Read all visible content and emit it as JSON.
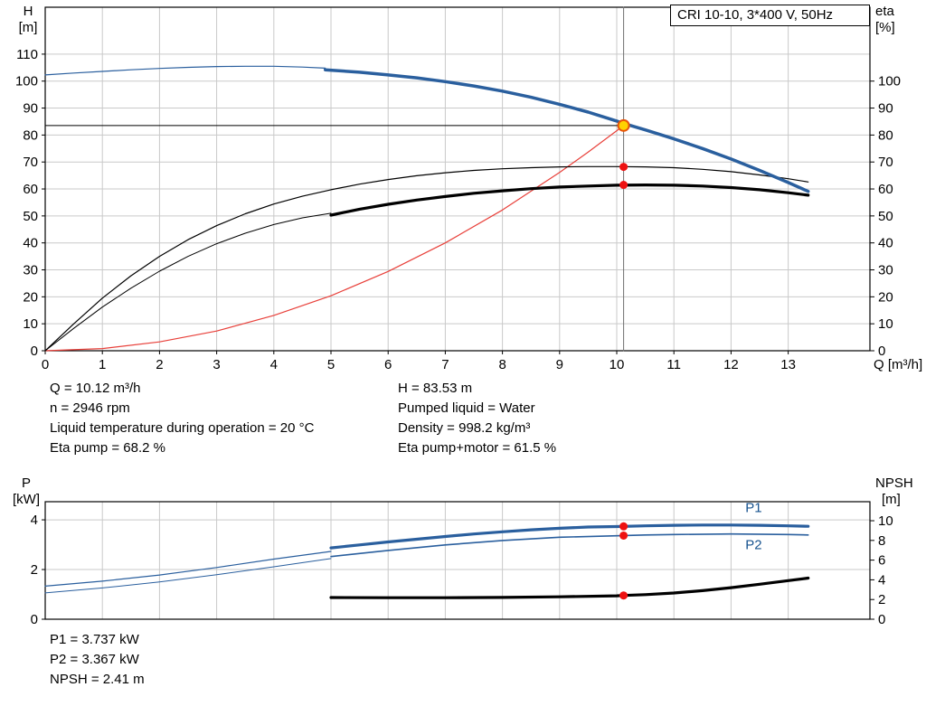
{
  "colors": {
    "axis": "#000000",
    "grid": "#c9c9c9",
    "curve_blue": "#2a5f9e",
    "curve_black": "#000000",
    "system_red": "#e8403a",
    "marker_red": "#ee1111",
    "duty_fill": "#ffd200",
    "duty_stroke": "#e8540a",
    "duty_line_gray": "#707070",
    "label_blue": "#17538f"
  },
  "operating_point_info": {
    "left": [
      "Q = 10.12 m³/h",
      "n = 2946 rpm",
      "Liquid temperature during operation = 20 °C",
      "Eta pump = 68.2 %"
    ],
    "right": [
      "H = 83.53 m",
      "Pumped liquid = Water",
      "Density = 998.2 kg/m³",
      "Eta pump+motor = 61.5 %"
    ]
  },
  "power_info": [
    "P1 = 3.737 kW",
    "P2 = 3.367 kW",
    "NPSH = 2.41 m"
  ],
  "chart_data": [
    {
      "id": "head-chart",
      "type": "line",
      "title": "CRI 10-10, 3*400 V, 50Hz",
      "x_axis": {
        "label": "Q [m³/h]",
        "min": 0,
        "max": 14.43,
        "ticks": [
          0,
          1,
          2,
          3,
          4,
          5,
          6,
          7,
          8,
          9,
          10,
          11,
          12,
          13
        ],
        "show_labels": true
      },
      "y_left": {
        "name": "H",
        "unit": "[m]",
        "min": 0,
        "max": 127.4,
        "ticks": [
          0,
          10,
          20,
          30,
          40,
          50,
          60,
          70,
          80,
          90,
          100,
          110
        ]
      },
      "y_right": {
        "name": "eta",
        "unit": "[%]",
        "min": 0,
        "max": 127.4,
        "ticks": [
          0,
          10,
          20,
          30,
          40,
          50,
          60,
          70,
          80,
          90,
          100
        ]
      },
      "grid": true,
      "legend": "none",
      "series": [
        {
          "name": "duty-vline",
          "axis": "left",
          "color": "#707070",
          "width": 1,
          "points": [
            [
              10.12,
              0
            ],
            [
              10.12,
              127.4
            ]
          ]
        },
        {
          "name": "duty-hline",
          "axis": "left",
          "color": "#000000",
          "width": 1,
          "points": [
            [
              0,
              83.53
            ],
            [
              10.12,
              83.53
            ]
          ]
        },
        {
          "name": "system-curve",
          "axis": "left",
          "color": "#e8403a",
          "width": 1.2,
          "points": [
            [
              0,
              0
            ],
            [
              1,
              0.8
            ],
            [
              2,
              3.3
            ],
            [
              3,
              7.3
            ],
            [
              4,
              13.1
            ],
            [
              5,
              20.4
            ],
            [
              6,
              29.4
            ],
            [
              7,
              40.0
            ],
            [
              8,
              52.2
            ],
            [
              9,
              66.1
            ],
            [
              9.5,
              73.7
            ],
            [
              10,
              81.6
            ],
            [
              10.12,
              83.5
            ]
          ]
        },
        {
          "name": "eta-pump-curve",
          "axis": "right",
          "color": "#000000",
          "width": 1.2,
          "points": [
            [
              0,
              0
            ],
            [
              0.5,
              10
            ],
            [
              1,
              19.5
            ],
            [
              1.5,
              27.8
            ],
            [
              2,
              35
            ],
            [
              2.5,
              41.2
            ],
            [
              3,
              46.4
            ],
            [
              3.5,
              50.8
            ],
            [
              4,
              54.4
            ],
            [
              4.5,
              57.3
            ],
            [
              5,
              59.7
            ],
            [
              5.5,
              61.8
            ],
            [
              6,
              63.5
            ],
            [
              6.5,
              64.9
            ],
            [
              7,
              66
            ],
            [
              7.5,
              66.9
            ],
            [
              8,
              67.5
            ],
            [
              8.5,
              67.9
            ],
            [
              9,
              68.2
            ],
            [
              9.5,
              68.3
            ],
            [
              10,
              68.3
            ],
            [
              10.5,
              68.2
            ],
            [
              11,
              67.9
            ],
            [
              11.5,
              67.3
            ],
            [
              12,
              66.4
            ],
            [
              12.5,
              65.2
            ],
            [
              13,
              63.8
            ],
            [
              13.35,
              62.6
            ]
          ]
        },
        {
          "name": "eta-pump-motor-thin",
          "axis": "right",
          "color": "#000000",
          "width": 1,
          "points": [
            [
              0,
              0
            ],
            [
              0.5,
              8.3
            ],
            [
              1,
              16.2
            ],
            [
              1.5,
              23.2
            ],
            [
              2,
              29.5
            ],
            [
              2.5,
              35
            ],
            [
              3,
              39.7
            ],
            [
              3.5,
              43.6
            ],
            [
              4,
              46.8
            ],
            [
              4.5,
              49.3
            ],
            [
              5,
              51.0
            ]
          ]
        },
        {
          "name": "eta-pump-motor-curve",
          "axis": "right",
          "color": "#000000",
          "width": 3.2,
          "points": [
            [
              5,
              50.3
            ],
            [
              5.5,
              52.5
            ],
            [
              6,
              54.3
            ],
            [
              6.5,
              55.9
            ],
            [
              7,
              57.2
            ],
            [
              7.5,
              58.4
            ],
            [
              8,
              59.3
            ],
            [
              8.5,
              60.1
            ],
            [
              9,
              60.7
            ],
            [
              9.5,
              61.1
            ],
            [
              10,
              61.4
            ],
            [
              10.5,
              61.5
            ],
            [
              11,
              61.4
            ],
            [
              11.5,
              61.1
            ],
            [
              12,
              60.5
            ],
            [
              12.5,
              59.7
            ],
            [
              13,
              58.6
            ],
            [
              13.35,
              57.7
            ]
          ]
        },
        {
          "name": "pump-curve-thin",
          "axis": "left",
          "color": "#2a5f9e",
          "width": 1.2,
          "points": [
            [
              0,
              102.3
            ],
            [
              0.5,
              103.0
            ],
            [
              1,
              103.6
            ],
            [
              1.5,
              104.2
            ],
            [
              2,
              104.7
            ],
            [
              2.5,
              105.1
            ],
            [
              3,
              105.4
            ],
            [
              3.5,
              105.5
            ],
            [
              4,
              105.5
            ],
            [
              4.5,
              105.2
            ],
            [
              4.9,
              104.8
            ]
          ]
        },
        {
          "name": "pump-curve",
          "axis": "left",
          "color": "#2a5f9e",
          "width": 3.5,
          "points": [
            [
              4.9,
              104.2
            ],
            [
              5.5,
              103.3
            ],
            [
              6,
              102.3
            ],
            [
              6.5,
              101.2
            ],
            [
              7,
              99.8
            ],
            [
              7.5,
              98.2
            ],
            [
              8,
              96.3
            ],
            [
              8.5,
              94.0
            ],
            [
              9,
              91.4
            ],
            [
              9.5,
              88.5
            ],
            [
              10,
              85.2
            ],
            [
              10.12,
              84.3
            ],
            [
              10.5,
              81.9
            ],
            [
              11,
              78.6
            ],
            [
              11.5,
              75.0
            ],
            [
              12,
              71.1
            ],
            [
              12.5,
              66.9
            ],
            [
              13,
              62.4
            ],
            [
              13.35,
              59.1
            ]
          ]
        }
      ],
      "markers": [
        {
          "name": "eta-pump-point",
          "axis": "right",
          "x": 10.12,
          "y": 68.2,
          "r": 4.5,
          "fill": "#ee1111"
        },
        {
          "name": "eta-motor-point",
          "axis": "right",
          "x": 10.12,
          "y": 61.5,
          "r": 4.5,
          "fill": "#ee1111"
        },
        {
          "name": "duty-point",
          "axis": "left",
          "x": 10.12,
          "y": 83.53,
          "r": 6,
          "fill": "#ffd200",
          "stroke": "#e8540a",
          "stroke_width": 2
        }
      ]
    },
    {
      "id": "power-chart",
      "type": "line",
      "x_axis": {
        "label": "",
        "min": 0,
        "max": 14.43,
        "ticks": [
          0,
          1,
          2,
          3,
          4,
          5,
          6,
          7,
          8,
          9,
          10,
          11,
          12,
          13
        ],
        "show_labels": false
      },
      "y_left": {
        "name": "P",
        "unit": "[kW]",
        "min": 0,
        "max": 4.73,
        "ticks": [
          0,
          2,
          4
        ]
      },
      "y_right": {
        "name": "NPSH",
        "unit": "[m]",
        "min": 0,
        "max": 11.93,
        "ticks": [
          0,
          2,
          4,
          6,
          8,
          10
        ]
      },
      "grid": true,
      "legend": "inline",
      "series": [
        {
          "name": "p2-curve-thin",
          "axis": "left",
          "color": "#2a5f9e",
          "width": 1,
          "points": [
            [
              0,
              1.06
            ],
            [
              1,
              1.26
            ],
            [
              2,
              1.5
            ],
            [
              3,
              1.79
            ],
            [
              4,
              2.11
            ],
            [
              5,
              2.44
            ]
          ]
        },
        {
          "name": "p2-curve",
          "axis": "left",
          "color": "#2a5f9e",
          "width": 1.6,
          "points": [
            [
              5,
              2.52
            ],
            [
              6,
              2.77
            ],
            [
              7,
              2.99
            ],
            [
              8,
              3.17
            ],
            [
              9,
              3.3
            ],
            [
              10,
              3.36
            ],
            [
              10.5,
              3.39
            ],
            [
              11,
              3.41
            ],
            [
              12,
              3.43
            ],
            [
              13,
              3.41
            ],
            [
              13.35,
              3.39
            ]
          ]
        },
        {
          "name": "p1-curve-thin",
          "axis": "left",
          "color": "#2a5f9e",
          "width": 1.2,
          "points": [
            [
              0,
              1.33
            ],
            [
              1,
              1.53
            ],
            [
              2,
              1.78
            ],
            [
              3,
              2.08
            ],
            [
              4,
              2.42
            ],
            [
              5,
              2.73
            ]
          ]
        },
        {
          "name": "p1-curve",
          "axis": "left",
          "color": "#2a5f9e",
          "width": 3.2,
          "points": [
            [
              5,
              2.87
            ],
            [
              5.5,
              2.99
            ],
            [
              6,
              3.11
            ],
            [
              6.5,
              3.22
            ],
            [
              7,
              3.33
            ],
            [
              7.5,
              3.43
            ],
            [
              8,
              3.52
            ],
            [
              8.5,
              3.6
            ],
            [
              9,
              3.66
            ],
            [
              9.5,
              3.71
            ],
            [
              10,
              3.73
            ],
            [
              10.5,
              3.76
            ],
            [
              11,
              3.78
            ],
            [
              11.5,
              3.79
            ],
            [
              12,
              3.79
            ],
            [
              12.5,
              3.78
            ],
            [
              13,
              3.76
            ],
            [
              13.35,
              3.74
            ]
          ]
        },
        {
          "name": "npsh-curve",
          "axis": "right",
          "color": "#000000",
          "width": 3.2,
          "points": [
            [
              5,
              2.2
            ],
            [
              6,
              2.18
            ],
            [
              7,
              2.18
            ],
            [
              8,
              2.21
            ],
            [
              9,
              2.28
            ],
            [
              10,
              2.38
            ],
            [
              10.12,
              2.41
            ],
            [
              10.5,
              2.5
            ],
            [
              11,
              2.66
            ],
            [
              11.5,
              2.9
            ],
            [
              12,
              3.2
            ],
            [
              12.5,
              3.55
            ],
            [
              13,
              3.92
            ],
            [
              13.35,
              4.18
            ]
          ]
        }
      ],
      "markers": [
        {
          "name": "p1-point",
          "axis": "left",
          "x": 10.12,
          "y": 3.737,
          "r": 4.5,
          "fill": "#ee1111"
        },
        {
          "name": "p2-point",
          "axis": "left",
          "x": 10.12,
          "y": 3.367,
          "r": 4.5,
          "fill": "#ee1111"
        },
        {
          "name": "npsh-point",
          "axis": "right",
          "x": 10.12,
          "y": 2.41,
          "r": 4.5,
          "fill": "#ee1111"
        }
      ],
      "annotations": [
        {
          "name": "p1-label",
          "text": "P1",
          "axis": "left",
          "x": 12.25,
          "y": 4.32,
          "color": "#17538f"
        },
        {
          "name": "p2-label",
          "text": "P2",
          "axis": "left",
          "x": 12.25,
          "y": 2.82,
          "color": "#17538f"
        }
      ]
    }
  ]
}
